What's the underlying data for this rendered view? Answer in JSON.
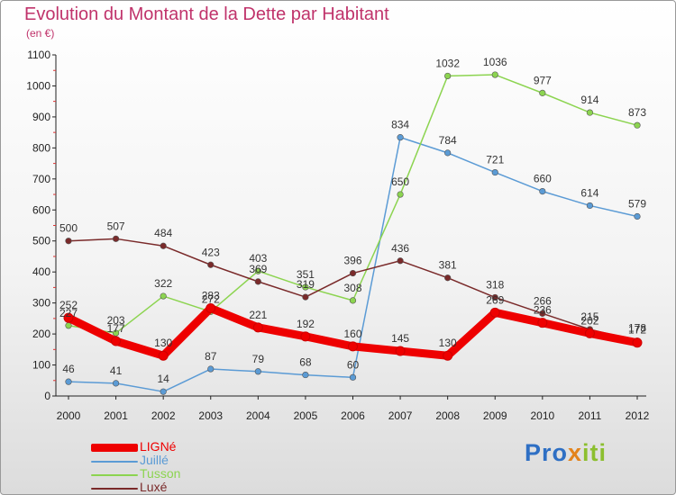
{
  "header": {
    "title": "Evolution du Montant de la Dette par Habitant",
    "unit": "(en €)"
  },
  "logo": {
    "text": "Proxiti",
    "parts": [
      "Pro",
      "x",
      "iti"
    ]
  },
  "chart_data": {
    "type": "line",
    "title": "Evolution du Montant de la Dette par Habitant",
    "ylabel": "(en €)",
    "xlabel": "",
    "ylim": [
      0,
      1100
    ],
    "yticks": [
      0,
      100,
      200,
      300,
      400,
      500,
      600,
      700,
      800,
      900,
      1000,
      1100
    ],
    "categories": [
      "2000",
      "2001",
      "2002",
      "2003",
      "2004",
      "2005",
      "2006",
      "2007",
      "2008",
      "2009",
      "2010",
      "2011",
      "2012"
    ],
    "legend_position": "bottom-left",
    "grid": false,
    "series": [
      {
        "name": "LIGNé",
        "color": "#ee0000",
        "width": 9,
        "values": [
          252,
          177,
          130,
          283,
          221,
          192,
          160,
          145,
          130,
          269,
          236,
          202,
          172
        ]
      },
      {
        "name": "Juillé",
        "color": "#5b9bd5",
        "width": 1.5,
        "values": [
          46,
          41,
          14,
          87,
          79,
          68,
          60,
          834,
          784,
          721,
          660,
          614,
          579
        ]
      },
      {
        "name": "Tusson",
        "color": "#8cd450",
        "width": 1.5,
        "values": [
          227,
          203,
          322,
          272,
          403,
          351,
          308,
          650,
          1032,
          1036,
          977,
          914,
          873
        ]
      },
      {
        "name": "Luxé",
        "color": "#7a2a2a",
        "width": 1.5,
        "values": [
          500,
          507,
          484,
          423,
          369,
          319,
          396,
          436,
          381,
          318,
          266,
          215,
          178
        ]
      }
    ]
  }
}
